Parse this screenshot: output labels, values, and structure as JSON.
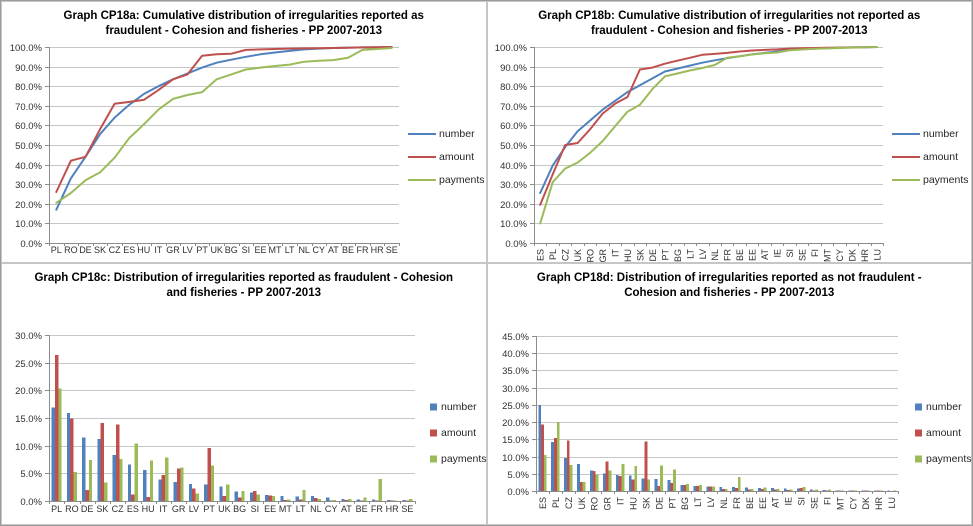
{
  "colors": {
    "number": "#4F81BD",
    "amount": "#C0504D",
    "payments": "#9BBB59",
    "gridline": "#C6C6C6",
    "axis_line": "#8C8C8C",
    "axis_text": "#303030",
    "legend_text": "#262626",
    "title_text": "#000000",
    "panel_border": "#C6C6C6"
  },
  "legend": {
    "items": [
      "number",
      "amount",
      "payments"
    ]
  },
  "chart_data": [
    {
      "id": "cp18a",
      "type": "line",
      "title_line1": "Graph CP18a: Cumulative distribution of irregularities reported as",
      "title_line2": "fraudulent - Cohesion and fisheries - PP 2007-2013",
      "ylabel_ticks": [
        "0.0%",
        "10.0%",
        "20.0%",
        "30.0%",
        "40.0%",
        "50.0%",
        "60.0%",
        "70.0%",
        "80.0%",
        "90.0%",
        "100.0%"
      ],
      "ylim": [
        0,
        100
      ],
      "ytick_step": 10,
      "grid": true,
      "legend_position": "right",
      "x_labels_rotated": false,
      "categories": [
        "PL",
        "RO",
        "DE",
        "SK",
        "CZ",
        "ES",
        "HU",
        "IT",
        "GR",
        "LV",
        "PT",
        "UK",
        "BG",
        "SI",
        "EE",
        "MT",
        "LT",
        "NL",
        "CY",
        "AT",
        "BE",
        "FR",
        "HR",
        "SE"
      ],
      "series": [
        {
          "name": "number",
          "values": [
            17,
            33,
            44,
            55.5,
            64,
            70.5,
            76,
            80,
            83.5,
            86.5,
            89.5,
            92,
            93.5,
            95,
            96.3,
            97.2,
            98,
            98.8,
            99.2,
            99.5,
            99.7,
            99.8,
            99.9,
            100
          ]
        },
        {
          "name": "amount",
          "values": [
            26,
            42,
            44,
            58,
            71,
            72,
            73,
            78,
            83.5,
            86,
            95.5,
            96.3,
            96.6,
            98.5,
            98.8,
            99,
            99.2,
            99.3,
            99.4,
            99.5,
            99.6,
            99.8,
            99.9,
            100
          ]
        },
        {
          "name": "payments",
          "values": [
            20.5,
            25.5,
            32,
            36,
            43.5,
            53.5,
            60.5,
            68,
            73.5,
            75.5,
            77,
            83.5,
            86,
            88.5,
            89.5,
            90.3,
            91,
            92.5,
            93,
            93.3,
            94.5,
            98.5,
            99,
            99.5
          ]
        }
      ]
    },
    {
      "id": "cp18b",
      "type": "line",
      "title_line1": "Graph CP18b: Cumulative distribution of irregularities not reported as",
      "title_line2": "fraudulent - Cohesion and fisheries - PP 2007-2013",
      "ylabel_ticks": [
        "0.0%",
        "10.0%",
        "20.0%",
        "30.0%",
        "40.0%",
        "50.0%",
        "60.0%",
        "70.0%",
        "80.0%",
        "90.0%",
        "100.0%"
      ],
      "ylim": [
        0,
        100
      ],
      "ytick_step": 10,
      "grid": true,
      "legend_position": "right",
      "x_labels_rotated": true,
      "categories": [
        "ES",
        "PL",
        "CZ",
        "UK",
        "RO",
        "GR",
        "IT",
        "HU",
        "SK",
        "DE",
        "PT",
        "BG",
        "LT",
        "LV",
        "NL",
        "FR",
        "BE",
        "EE",
        "AT",
        "IE",
        "SI",
        "SE",
        "FI",
        "MT",
        "CY",
        "DK",
        "HR",
        "LU"
      ],
      "series": [
        {
          "name": "number",
          "values": [
            25.5,
            39.5,
            49,
            57,
            62.5,
            68,
            72.5,
            77,
            80.5,
            84,
            87.5,
            89,
            90.5,
            92,
            93.2,
            94.3,
            95.3,
            96.2,
            97,
            97.7,
            98.4,
            98.9,
            99.2,
            99.4,
            99.6,
            99.8,
            99.9,
            100
          ]
        },
        {
          "name": "amount",
          "values": [
            19.5,
            35,
            50,
            51,
            58,
            66,
            71,
            74.5,
            88.5,
            89.5,
            91.5,
            93,
            94.5,
            96,
            96.5,
            97,
            97.7,
            98.2,
            98.5,
            98.8,
            99.2,
            99.4,
            99.5,
            99.6,
            99.7,
            99.8,
            99.9,
            100
          ]
        },
        {
          "name": "payments",
          "values": [
            10,
            31,
            38,
            41,
            46,
            52,
            59.5,
            67,
            70.5,
            78.5,
            85,
            86.5,
            88,
            89.3,
            90.8,
            94.5,
            95.2,
            96.2,
            96.8,
            97.2,
            98.3,
            98.7,
            99.1,
            99.3,
            99.5,
            99.7,
            99.85,
            100
          ]
        }
      ]
    },
    {
      "id": "cp18c",
      "type": "bar",
      "title_line1": "Graph CP18c: Distribution of irregularities reported as fraudulent - Cohesion",
      "title_line2": "and fisheries - PP 2007-2013",
      "ylabel_ticks": [
        "0.0%",
        "5.0%",
        "10.0%",
        "15.0%",
        "20.0%",
        "25.0%",
        "30.0%"
      ],
      "ylim": [
        0,
        30
      ],
      "ytick_step": 5,
      "grid": true,
      "legend_position": "right",
      "x_labels_rotated": false,
      "categories": [
        "PL",
        "RO",
        "DE",
        "SK",
        "CZ",
        "ES",
        "HU",
        "IT",
        "GR",
        "LV",
        "PT",
        "UK",
        "BG",
        "SI",
        "EE",
        "MT",
        "LT",
        "NL",
        "CY",
        "AT",
        "BE",
        "FR",
        "HR",
        "SE"
      ],
      "series": [
        {
          "name": "number",
          "values": [
            16.9,
            15.9,
            11.5,
            11.2,
            8.3,
            6.6,
            5.6,
            3.9,
            3.4,
            3.1,
            3.0,
            2.6,
            1.7,
            1.5,
            1.1,
            0.9,
            0.8,
            0.9,
            0.6,
            0.4,
            0.3,
            0.3,
            0.2,
            0.2
          ]
        },
        {
          "name": "amount",
          "values": [
            26.4,
            14.9,
            2.0,
            14.1,
            13.8,
            1.2,
            0.7,
            4.7,
            5.9,
            2.3,
            9.6,
            0.9,
            0.6,
            1.8,
            1.0,
            0.2,
            0.3,
            0.5,
            0.1,
            0.2,
            0.1,
            0.1,
            0.1,
            0.1
          ]
        },
        {
          "name": "payments",
          "values": [
            20.3,
            5.2,
            7.4,
            3.3,
            7.6,
            10.4,
            7.3,
            7.9,
            6.1,
            1.4,
            6.4,
            3.0,
            1.8,
            1.2,
            0.9,
            0.3,
            2.0,
            0.4,
            0.2,
            0.4,
            0.6,
            4.0,
            0.1,
            0.4
          ]
        }
      ]
    },
    {
      "id": "cp18d",
      "type": "bar",
      "title_line1": "Graph CP18d: Distribution of irregularities reported as not fraudulent -",
      "title_line2": "Cohesion and fisheries - PP 2007-2013",
      "ylabel_ticks": [
        "0.0%",
        "5.0%",
        "10.0%",
        "15.0%",
        "20.0%",
        "25.0%",
        "30.0%",
        "35.0%",
        "40.0%",
        "45.0%"
      ],
      "ylim": [
        0,
        45
      ],
      "ytick_step": 5,
      "grid": true,
      "legend_position": "right",
      "x_labels_rotated": true,
      "categories": [
        "ES",
        "PL",
        "CZ",
        "UK",
        "RO",
        "GR",
        "IT",
        "HU",
        "SK",
        "DE",
        "PT",
        "BG",
        "LT",
        "LV",
        "NL",
        "FR",
        "BE",
        "EE",
        "AT",
        "IE",
        "SI",
        "SE",
        "FI",
        "MT",
        "CY",
        "DK",
        "HR",
        "LU"
      ],
      "series": [
        {
          "name": "number",
          "values": [
            25.0,
            14.2,
            9.6,
            7.9,
            5.9,
            5.1,
            4.6,
            4.5,
            3.7,
            3.5,
            3.2,
            1.8,
            1.5,
            1.3,
            1.2,
            1.1,
            1.0,
            0.9,
            0.8,
            0.7,
            0.7,
            0.5,
            0.3,
            0.2,
            0.2,
            0.2,
            0.1,
            0.1
          ]
        },
        {
          "name": "amount",
          "values": [
            19.3,
            15.4,
            14.7,
            2.6,
            5.8,
            8.6,
            4.4,
            3.3,
            14.3,
            1.5,
            2.3,
            1.8,
            1.4,
            1.3,
            0.6,
            0.8,
            0.5,
            0.6,
            0.4,
            0.3,
            0.9,
            0.2,
            0.1,
            0.2,
            0.2,
            0.1,
            0.1,
            0.0
          ]
        },
        {
          "name": "payments",
          "values": [
            10.5,
            20.0,
            7.5,
            2.6,
            4.8,
            6.0,
            7.8,
            7.2,
            3.3,
            7.4,
            6.3,
            2.0,
            1.8,
            1.3,
            0.6,
            4.0,
            0.6,
            1.0,
            0.6,
            0.4,
            1.2,
            0.4,
            0.5,
            0.2,
            0.2,
            0.2,
            0.1,
            0.1
          ]
        }
      ]
    }
  ]
}
